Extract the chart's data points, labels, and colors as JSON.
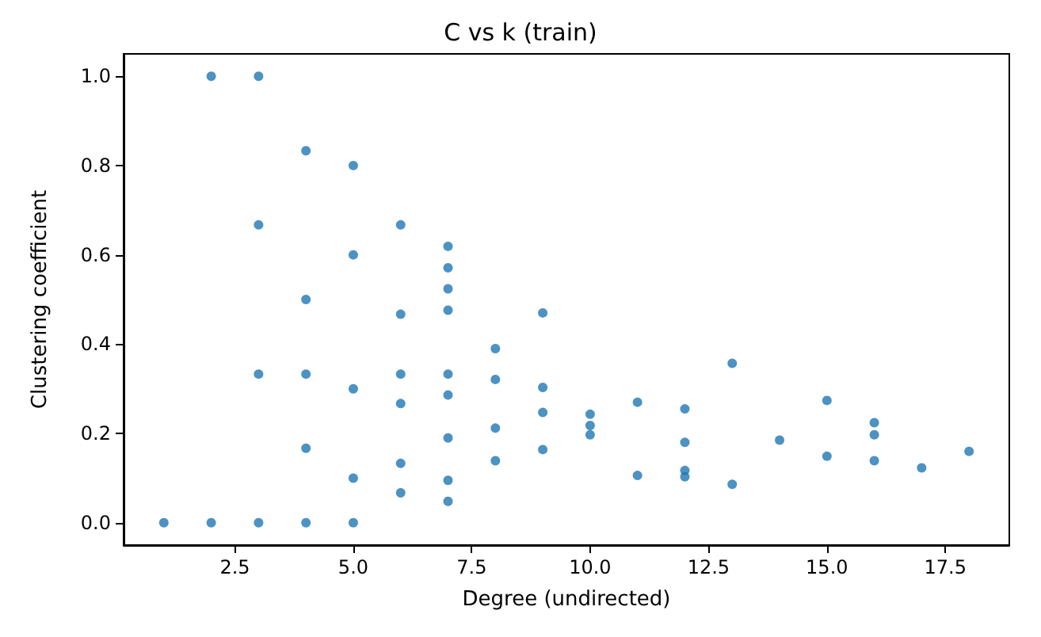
{
  "chart_data": {
    "type": "scatter",
    "title": "C vs k (train)",
    "xlabel": "Degree (undirected)",
    "ylabel": "Clustering coefficient",
    "xlim": [
      0.15,
      18.85
    ],
    "ylim": [
      -0.05,
      1.05
    ],
    "xticks": [
      {
        "value": 2.5,
        "label": "2.5"
      },
      {
        "value": 5,
        "label": "5.0"
      },
      {
        "value": 7.5,
        "label": "7.5"
      },
      {
        "value": 10,
        "label": "10.0"
      },
      {
        "value": 12.5,
        "label": "12.5"
      },
      {
        "value": 15,
        "label": "15.0"
      },
      {
        "value": 17.5,
        "label": "17.5"
      }
    ],
    "yticks": [
      {
        "value": 0,
        "label": "0.0"
      },
      {
        "value": 0.2,
        "label": "0.2"
      },
      {
        "value": 0.4,
        "label": "0.4"
      },
      {
        "value": 0.6,
        "label": "0.6"
      },
      {
        "value": 0.8,
        "label": "0.8"
      },
      {
        "value": 1,
        "label": "1.0"
      }
    ],
    "grid": false,
    "marker": "circle",
    "series": [
      {
        "color": "#1f77b4",
        "x": [
          1,
          2,
          2,
          3,
          3,
          3,
          3,
          4,
          4,
          4,
          4,
          4,
          5,
          5,
          5,
          5,
          5,
          6,
          6,
          6,
          6,
          6,
          6,
          7,
          7,
          7,
          7,
          7,
          7,
          7,
          7,
          7,
          8,
          8,
          8,
          8,
          9,
          9,
          9,
          9,
          10,
          10,
          10,
          11,
          11,
          12,
          12,
          12,
          12,
          13,
          13,
          14,
          15,
          15,
          16,
          16,
          16,
          17,
          18
        ],
        "values": [
          0,
          1,
          0,
          1,
          0.667,
          0.333,
          0,
          0.833,
          0.5,
          0.333,
          0.167,
          0,
          0.8,
          0.6,
          0.3,
          0.1,
          0,
          0.667,
          0.467,
          0.333,
          0.267,
          0.133,
          0.067,
          0.619,
          0.571,
          0.524,
          0.476,
          0.333,
          0.286,
          0.19,
          0.095,
          0.048,
          0.39,
          0.321,
          0.212,
          0.139,
          0.47,
          0.303,
          0.247,
          0.164,
          0.243,
          0.218,
          0.197,
          0.27,
          0.106,
          0.255,
          0.18,
          0.117,
          0.103,
          0.357,
          0.086,
          0.185,
          0.274,
          0.149,
          0.224,
          0.197,
          0.139,
          0.123,
          0.16
        ]
      }
    ]
  }
}
